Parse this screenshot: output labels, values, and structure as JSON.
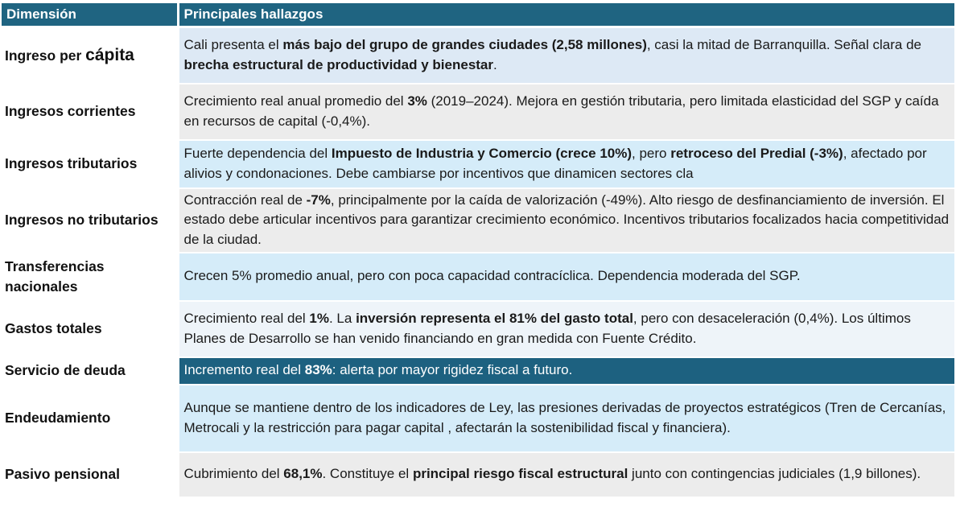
{
  "header": {
    "col1": "Dimensión",
    "col2": "Principales hallazgos"
  },
  "colors": {
    "header_bg": "#1f6481",
    "highlight_row_bg": "#1d6180",
    "row_light_blue": "#dde9f5",
    "row_gray": "#ececec",
    "row_sky": "#d5ecf9"
  },
  "rows": [
    {
      "dimension_a": "Ingreso per ",
      "dimension_b": "cápita",
      "segments": [
        {
          "t": "Cali presenta el ",
          "b": false
        },
        {
          "t": "más bajo del grupo de grandes ciudades (2,58 millones)",
          "b": true
        },
        {
          "t": ", casi la mitad de Barranquilla.  Señal clara de ",
          "b": false
        },
        {
          "t": "brecha estructural de productividad y bienestar",
          "b": true
        },
        {
          "t": ".",
          "b": false
        }
      ]
    },
    {
      "dimension": "Ingresos corrientes",
      "segments": [
        {
          "t": "Crecimiento real anual promedio del ",
          "b": false
        },
        {
          "t": "3%",
          "b": true
        },
        {
          "t": " (2019–2024).  Mejora en gestión tributaria, pero limitada elasticidad del SGP y caída en recursos de capital (-0,4%).",
          "b": false
        }
      ]
    },
    {
      "dimension": "Ingresos tributarios",
      "segments": [
        {
          "t": "Fuerte dependencia del ",
          "b": false
        },
        {
          "t": "Impuesto de Industria y Comercio (crece 10%)",
          "b": true
        },
        {
          "t": ", pero ",
          "b": false
        },
        {
          "t": "retroceso del Predial (-3%)",
          "b": true
        },
        {
          "t": ", afectado por alivios y condonaciones. Debe cambiarse por incentivos que dinamicen sectores cla",
          "b": false
        }
      ]
    },
    {
      "dimension": "Ingresos no tributarios",
      "segments": [
        {
          "t": "Contracción real de ",
          "b": false
        },
        {
          "t": "-7%",
          "b": true
        },
        {
          "t": ", principalmente por la caída de valorización (-49%). Alto riesgo de desfinanciamiento de inversión. El estado debe articular incentivos para garantizar crecimiento económico. Incentivos tributarios focalizados hacia competitividad de la ciudad.",
          "b": false
        }
      ]
    },
    {
      "dimension": "Transferencias nacionales",
      "segments": [
        {
          "t": "Crecen 5% promedio anual, pero con poca capacidad contracíclica.  Dependencia moderada del SGP.",
          "b": false
        }
      ]
    },
    {
      "dimension": "Gastos totales",
      "segments": [
        {
          "t": "Crecimiento real del ",
          "b": false
        },
        {
          "t": "1%",
          "b": true
        },
        {
          "t": ". La ",
          "b": false
        },
        {
          "t": "inversión representa el 81% del gasto total",
          "b": true
        },
        {
          "t": ", pero con desaceleración (0,4%).  Los últimos Planes de Desarrollo se han venido financiando en gran medida con Fuente Crédito.",
          "b": false
        }
      ]
    },
    {
      "dimension": "Servicio de deuda",
      "segments": [
        {
          "t": "Incremento real del ",
          "b": false
        },
        {
          "t": "83%",
          "b": true
        },
        {
          "t": ": alerta por mayor rigidez fiscal a futuro.",
          "b": false
        }
      ]
    },
    {
      "dimension": "Endeudamiento",
      "segments": [
        {
          "t": "Aunque se mantiene dentro de los indicadores de Ley, las presiones derivadas de proyectos estratégicos (Tren de Cercanías, Metrocali y la restricción para pagar capital , afectarán la sostenibilidad fiscal y financiera).",
          "b": false
        }
      ]
    },
    {
      "dimension": "Pasivo pensional",
      "segments": [
        {
          "t": "Cubrimiento del ",
          "b": false
        },
        {
          "t": "68,1%",
          "b": true
        },
        {
          "t": ". Constituye el ",
          "b": false
        },
        {
          "t": "principal riesgo fiscal estructural",
          "b": true
        },
        {
          "t": " junto con contingencias  judiciales (1,9 billones).",
          "b": false
        }
      ]
    }
  ]
}
